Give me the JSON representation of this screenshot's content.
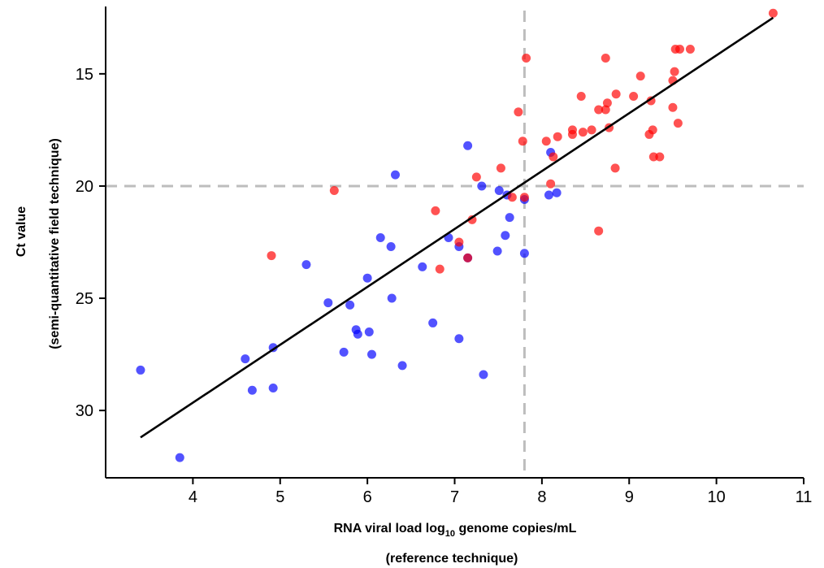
{
  "chart_data": {
    "type": "scatter",
    "title": "",
    "xlabel_main": "RNA viral load log",
    "xlabel_sub": "10",
    "xlabel_tail": " genome copies/mL",
    "xlabel_line2": "(reference technique)",
    "ylabel_line1": "Ct value",
    "ylabel_line2": "(semi-quantitative field technique)",
    "xlim": [
      3,
      11
    ],
    "ylim": [
      33,
      12
    ],
    "y_inverted": true,
    "x_ticks": [
      4,
      5,
      6,
      7,
      8,
      9,
      10,
      11
    ],
    "y_ticks": [
      15,
      20,
      25,
      30
    ],
    "grid": false,
    "cutoffs": {
      "x": 7.8,
      "y": 20
    },
    "trend_line": {
      "x": [
        3.4,
        10.65
      ],
      "y": [
        31.2,
        12.5
      ]
    },
    "series": [
      {
        "color": "#0000ff",
        "x": [
          3.4,
          3.85,
          4.6,
          4.68,
          4.92,
          4.92,
          5.3,
          5.55,
          5.73,
          5.8,
          5.87,
          5.89,
          6.0,
          6.02,
          6.05,
          6.15,
          6.27,
          6.28,
          6.32,
          6.4,
          6.63,
          6.75,
          6.93,
          7.05,
          7.05,
          7.15,
          7.15,
          7.31,
          7.33,
          7.49,
          7.51,
          7.58,
          7.6,
          7.63,
          7.8,
          7.8,
          8.08,
          8.1,
          8.17
        ],
        "y": [
          28.2,
          32.1,
          27.7,
          29.1,
          27.2,
          29.0,
          23.5,
          25.2,
          27.4,
          25.3,
          26.4,
          26.6,
          24.1,
          26.5,
          27.5,
          22.3,
          22.7,
          25.0,
          19.5,
          28.0,
          23.6,
          26.1,
          22.3,
          22.7,
          26.8,
          18.2,
          23.2,
          20.0,
          28.4,
          22.9,
          20.2,
          22.2,
          20.4,
          21.4,
          20.6,
          23.0,
          20.4,
          18.5,
          20.3
        ]
      },
      {
        "color": "#ff0000",
        "x": [
          4.9,
          5.62,
          6.78,
          6.83,
          7.05,
          7.15,
          7.2,
          7.25,
          7.53,
          7.66,
          7.73,
          7.78,
          7.8,
          7.82,
          8.05,
          8.1,
          8.13,
          8.18,
          8.35,
          8.35,
          8.45,
          8.47,
          8.57,
          8.65,
          8.65,
          8.73,
          8.73,
          8.75,
          8.77,
          8.84,
          8.85,
          9.05,
          9.13,
          9.23,
          9.25,
          9.27,
          9.28,
          9.35,
          9.5,
          9.5,
          9.52,
          9.53,
          9.56,
          9.58,
          9.7,
          10.65
        ],
        "y": [
          23.1,
          20.2,
          21.1,
          23.7,
          22.5,
          23.2,
          21.5,
          19.6,
          19.2,
          20.5,
          16.7,
          18.0,
          20.5,
          14.3,
          18.0,
          19.9,
          18.7,
          17.8,
          17.5,
          17.7,
          16.0,
          17.6,
          17.5,
          16.6,
          22.0,
          14.3,
          16.6,
          16.3,
          17.4,
          19.2,
          15.9,
          16.0,
          15.1,
          17.7,
          16.2,
          17.5,
          18.7,
          18.7,
          16.5,
          15.3,
          14.9,
          13.9,
          17.2,
          13.9,
          13.9,
          12.3
        ]
      }
    ]
  }
}
